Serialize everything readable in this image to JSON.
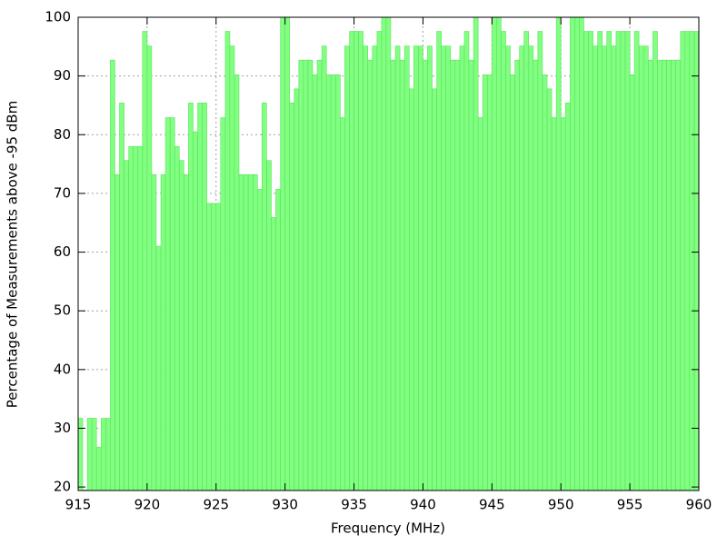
{
  "chart_data": {
    "type": "bar",
    "xlabel": "Frequency (MHz)",
    "ylabel": "Percentage of Measurements above -95 dBm",
    "color": "#80ff80",
    "grid": true,
    "xlim": [
      915,
      960
    ],
    "ylim": [
      19.4,
      100
    ],
    "xticks": [
      915,
      920,
      925,
      930,
      935,
      940,
      945,
      950,
      955,
      960
    ],
    "yticks": [
      20,
      30,
      40,
      50,
      60,
      70,
      80,
      90,
      100
    ],
    "x": [
      915,
      915.33,
      915.67,
      916,
      916.33,
      916.67,
      917,
      917.33,
      917.67,
      918,
      918.33,
      918.67,
      919,
      919.33,
      919.67,
      920,
      920.33,
      920.67,
      921,
      921.33,
      921.67,
      922,
      922.33,
      922.67,
      923,
      923.33,
      923.67,
      924,
      924.33,
      924.67,
      925,
      925.33,
      925.67,
      926,
      926.33,
      926.67,
      927,
      927.33,
      927.67,
      928,
      928.33,
      928.67,
      929,
      929.33,
      929.67,
      930,
      930.33,
      930.67,
      931,
      931.33,
      931.67,
      932,
      932.33,
      932.67,
      933,
      933.33,
      933.67,
      934,
      934.33,
      934.67,
      935,
      935.33,
      935.67,
      936,
      936.33,
      936.67,
      937,
      937.33,
      937.67,
      938,
      938.33,
      938.67,
      939,
      939.33,
      939.67,
      940,
      940.33,
      940.67,
      941,
      941.33,
      941.67,
      942,
      942.33,
      942.67,
      943,
      943.33,
      943.67,
      944,
      944.33,
      944.67,
      945,
      945.33,
      945.67,
      946,
      946.33,
      946.67,
      947,
      947.33,
      947.67,
      948,
      948.33,
      948.67,
      949,
      949.33,
      949.67,
      950,
      950.33,
      950.67,
      951,
      951.33,
      951.67,
      952,
      952.33,
      952.67,
      953,
      953.33,
      953.67,
      954,
      954.33,
      954.67,
      955,
      955.33,
      955.67,
      956,
      956.33,
      956.67,
      957,
      957.33,
      957.67,
      958,
      958.33,
      958.67,
      959,
      959.33,
      959.67
    ],
    "values": [
      31.7,
      19.5,
      31.7,
      31.7,
      26.8,
      31.7,
      31.7,
      92.7,
      73.2,
      85.4,
      75.6,
      78,
      78,
      78,
      97.6,
      95.1,
      73.2,
      61,
      73.2,
      82.9,
      82.9,
      78,
      75.6,
      73.2,
      85.4,
      80.5,
      85.4,
      85.4,
      68.3,
      68.3,
      68.3,
      82.9,
      97.6,
      95.1,
      90.2,
      73.2,
      73.2,
      73.2,
      73.2,
      70.7,
      85.4,
      75.6,
      65.9,
      70.7,
      100,
      100,
      85.4,
      87.8,
      92.7,
      92.7,
      92.7,
      90.2,
      92.7,
      95.1,
      90.2,
      90.2,
      90.2,
      82.9,
      95.1,
      97.6,
      97.6,
      97.6,
      95.1,
      92.7,
      95.1,
      97.6,
      100,
      100,
      92.7,
      95.1,
      92.7,
      95.1,
      87.8,
      95.1,
      95.1,
      92.7,
      95.1,
      87.8,
      97.6,
      95.1,
      95.1,
      92.7,
      92.7,
      95.1,
      97.6,
      92.7,
      100,
      82.9,
      90.2,
      90.2,
      100,
      100,
      97.6,
      95.1,
      90.2,
      92.7,
      95.1,
      97.6,
      95.1,
      92.7,
      97.6,
      90.2,
      87.8,
      82.9,
      100,
      82.9,
      85.4,
      100,
      100,
      100,
      97.6,
      97.6,
      95.1,
      97.6,
      95.1,
      97.6,
      95.1,
      97.6,
      97.6,
      97.6,
      90.2,
      97.6,
      95.1,
      95.1,
      92.7,
      97.6,
      92.7,
      92.7,
      92.7,
      92.7,
      92.7,
      97.6,
      97.6,
      97.6,
      97.6
    ]
  }
}
